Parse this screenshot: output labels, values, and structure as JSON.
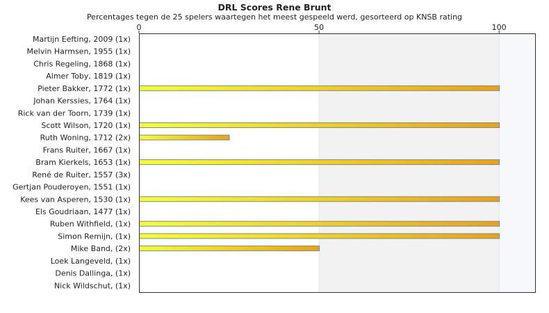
{
  "chart_data": {
    "type": "bar",
    "orientation": "horizontal",
    "title": "DRL Scores Rene Brunt",
    "subtitle": "Percentages tegen de 25 spelers waartegen het meest gespeeld werd, gesorteerd op KNSB rating",
    "xlabel": "",
    "ylabel": "",
    "xlim": [
      0,
      110
    ],
    "ticks": [
      0,
      50,
      100
    ],
    "grid": false,
    "categories": [
      "Martijn Eefting, 2009 (1x)",
      "Melvin Harmsen, 1955 (1x)",
      "Chris Regeling, 1868 (1x)",
      "Almer Toby, 1819 (1x)",
      "Pieter Bakker, 1772 (1x)",
      "Johan Kerssies, 1764 (1x)",
      "Rick van der Toorn, 1739 (1x)",
      "Scott Wilson, 1720 (1x)",
      "Ruth Woning, 1712 (2x)",
      "Frans Ruiter, 1667 (1x)",
      "Bram Kierkels, 1653 (1x)",
      "René de Ruiter, 1557 (3x)",
      "Gertjan Pouderoyen, 1551 (1x)",
      "Kees van Asperen, 1530 (1x)",
      "Els Goudriaan, 1477 (1x)",
      "Ruben Withfield,  (1x)",
      "Simon Remijn,  (1x)",
      "Mike Band,  (2x)",
      "Loek Langeveld,  (1x)",
      "Denis Dallinga,  (1x)",
      "Nick Wildschut,  (1x)"
    ],
    "values": [
      0,
      0,
      0,
      0,
      100,
      0,
      0,
      100,
      25,
      0,
      100,
      0,
      0,
      100,
      0,
      100,
      100,
      50,
      0,
      0,
      0
    ],
    "colors": {
      "bar_start": "#ffff22",
      "bar_end": "#f5a000",
      "bar_border": "#5b8fc8",
      "band_light": "#f2f2f2",
      "band_lighter": "#f7f8fb",
      "frame": "#333333"
    }
  }
}
